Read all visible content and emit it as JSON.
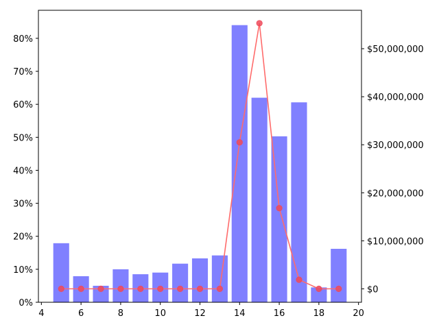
{
  "chart_data": {
    "type": "bar+line",
    "title": "",
    "xlabel": "",
    "ylabel_left": "",
    "ylabel_right": "",
    "x": [
      5,
      6,
      7,
      8,
      9,
      10,
      11,
      12,
      13,
      14,
      15,
      16,
      17,
      18,
      19
    ],
    "xlim": [
      3.85,
      20.15
    ],
    "x_ticks": [
      4,
      6,
      8,
      10,
      12,
      14,
      16,
      18,
      20
    ],
    "y_left_lim": [
      0,
      0.885
    ],
    "y_left_ticks": [
      0,
      0.1,
      0.2,
      0.3,
      0.4,
      0.5,
      0.6,
      0.7,
      0.8
    ],
    "y_left_tick_labels": [
      "0%",
      "10%",
      "20%",
      "30%",
      "40%",
      "50%",
      "60%",
      "70%",
      "80%"
    ],
    "y_right_lim": [
      -2800000,
      58000000
    ],
    "y_right_ticks": [
      0,
      10000000,
      20000000,
      30000000,
      40000000,
      50000000
    ],
    "y_right_tick_labels": [
      "$0",
      "$10,000,000",
      "$20,000,000",
      "$30,000,000",
      "$40,000,000",
      "$50,000,000"
    ],
    "series": [
      {
        "type": "bar",
        "axis": "left",
        "color": "#8080ff",
        "values": [
          0.179,
          0.079,
          0.05,
          0.1,
          0.085,
          0.09,
          0.117,
          0.133,
          0.142,
          0.84,
          0.62,
          0.503,
          0.606,
          0.045,
          0.162
        ]
      },
      {
        "type": "line",
        "axis": "right",
        "color": "#ff6b6b",
        "marker_color": "#ee4a5a",
        "values": [
          0,
          0,
          0,
          0,
          0,
          0,
          0,
          0,
          0,
          30500000,
          55300000,
          16800000,
          1900000,
          0,
          0
        ]
      }
    ],
    "grid": false,
    "legend": "none"
  }
}
